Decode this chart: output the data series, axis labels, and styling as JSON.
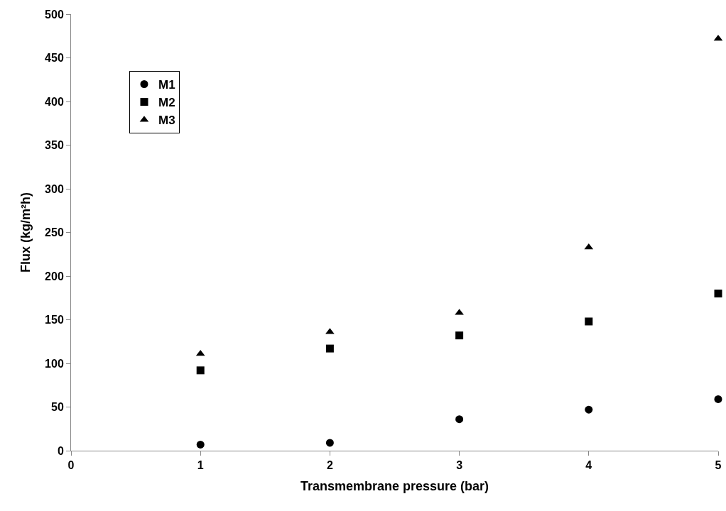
{
  "chart_data": {
    "type": "scatter",
    "xlabel": "Transmembrane pressure (bar)",
    "ylabel": "Flux (kg/m²h)",
    "x": [
      1,
      2,
      3,
      4,
      5
    ],
    "series": [
      {
        "name": "M1",
        "color": "#000000",
        "marker": "circle",
        "values": [
          7,
          9,
          36,
          47,
          59
        ]
      },
      {
        "name": "M2",
        "color": "#000000",
        "marker": "square",
        "values": [
          92,
          117,
          132,
          148,
          180
        ]
      },
      {
        "name": "M3",
        "color": "#000000",
        "marker": "triangle",
        "values": [
          111,
          136,
          158,
          233,
          472
        ]
      }
    ],
    "xlim": [
      0,
      5
    ],
    "xticks": [
      0,
      1,
      2,
      3,
      4,
      5
    ],
    "ylim": [
      0,
      500
    ],
    "yticks": [
      0,
      50,
      100,
      150,
      200,
      250,
      300,
      350,
      400,
      450,
      500
    ],
    "legend": "top left"
  }
}
